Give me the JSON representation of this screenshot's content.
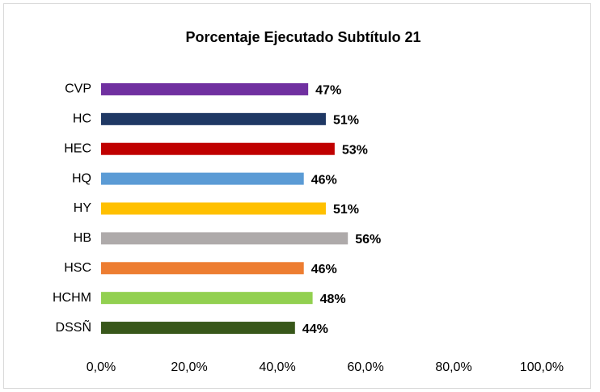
{
  "chart_data": {
    "type": "hbar",
    "title": "Porcentaje Ejecutado Subtítulo 21",
    "categories": [
      "CVP",
      "HC",
      "HEC",
      "HQ",
      "HY",
      "HB",
      "HSC",
      "HCHM",
      "DSSÑ"
    ],
    "values": [
      47,
      51,
      53,
      46,
      51,
      56,
      46,
      48,
      44
    ],
    "value_labels": [
      "47%",
      "51%",
      "53%",
      "46%",
      "51%",
      "56%",
      "46%",
      "48%",
      "44%"
    ],
    "colors": [
      "#7030a0",
      "#1f3864",
      "#c00000",
      "#5b9bd5",
      "#ffc000",
      "#aeaaaa",
      "#ed7d31",
      "#92d050",
      "#38571a"
    ],
    "xlim": [
      0,
      100
    ],
    "xticks": [
      {
        "value": 0,
        "label": "0,0%"
      },
      {
        "value": 20,
        "label": "20,0%"
      },
      {
        "value": 40,
        "label": "40,0%"
      },
      {
        "value": 60,
        "label": "60,0%"
      },
      {
        "value": 80,
        "label": "80,0%"
      },
      {
        "value": 100,
        "label": "100,0%"
      }
    ],
    "grid": false
  }
}
